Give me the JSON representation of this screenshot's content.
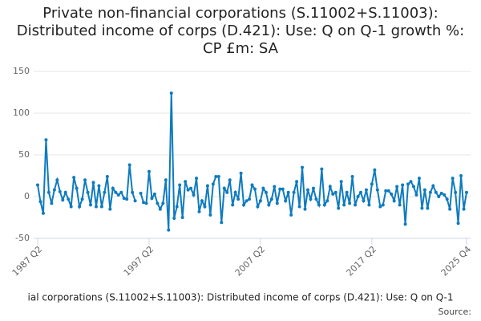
{
  "chart_data": {
    "type": "line",
    "title": "Private non-financial corporations (S.11002+S.11003): Distributed income of corps (D.421): Use: Q on Q-1 growth %: CP £m: SA",
    "categories": [
      "1987 Q2",
      null,
      null,
      null,
      null,
      null,
      null,
      null,
      null,
      null,
      null,
      null,
      null,
      null,
      null,
      null,
      null,
      null,
      null,
      null,
      null,
      null,
      null,
      null,
      null,
      null,
      null,
      null,
      null,
      null,
      null,
      null,
      null,
      null,
      null,
      null,
      null,
      null,
      null,
      null,
      "1997 Q2",
      null,
      null,
      null,
      null,
      null,
      null,
      null,
      null,
      null,
      null,
      null,
      null,
      null,
      null,
      null,
      null,
      null,
      null,
      null,
      null,
      null,
      null,
      null,
      null,
      null,
      null,
      null,
      null,
      null,
      null,
      null,
      null,
      null,
      null,
      null,
      null,
      null,
      null,
      null,
      "2007 Q2",
      null,
      null,
      null,
      null,
      null,
      null,
      null,
      null,
      null,
      null,
      null,
      null,
      null,
      null,
      null,
      null,
      null,
      null,
      null,
      null,
      null,
      null,
      null,
      null,
      null,
      null,
      null,
      null,
      null,
      null,
      null,
      null,
      null,
      null,
      null,
      null,
      null,
      null,
      null,
      "2017 Q2",
      null,
      null,
      null,
      null,
      null,
      null,
      null,
      null,
      null,
      null,
      null,
      null,
      null,
      null,
      null,
      null,
      null,
      null,
      null,
      null,
      null,
      null,
      null,
      null,
      null,
      null,
      null,
      null,
      null,
      null,
      null,
      null,
      null,
      "2025 Q4"
    ],
    "series": [
      {
        "name": "ial corporations (S.11002+S.11003): Distributed income of corps (D.421): Use: Q on Q-1",
        "color": "#0f7bbf",
        "values": [
          14,
          -6,
          -20,
          68,
          5,
          -8,
          8,
          20,
          6,
          -4,
          5,
          -3,
          -12,
          23,
          10,
          -12,
          -3,
          20,
          5,
          -10,
          17,
          -12,
          13,
          -12,
          5,
          24,
          -15,
          10,
          5,
          2,
          5,
          -2,
          -3,
          38,
          5,
          -5,
          null,
          4,
          -7,
          -8,
          30,
          -2,
          3,
          -8,
          -15,
          -8,
          20,
          -40,
          124,
          -26,
          -12,
          14,
          -25,
          18,
          8,
          10,
          2,
          22,
          -18,
          -5,
          -12,
          13,
          -22,
          15,
          24,
          24,
          -31,
          10,
          5,
          20,
          -10,
          5,
          -3,
          28,
          -10,
          -5,
          -3,
          14,
          9,
          -12,
          -5,
          10,
          5,
          -10,
          -3,
          12,
          -8,
          9,
          9,
          -5,
          5,
          -22,
          5,
          18,
          -12,
          35,
          -15,
          8,
          -3,
          10,
          -3,
          -10,
          33,
          -10,
          -5,
          12,
          3,
          5,
          -14,
          18,
          -10,
          5,
          -8,
          24,
          -10,
          0,
          5,
          -5,
          8,
          -10,
          15,
          32,
          8,
          -12,
          -10,
          7,
          7,
          3,
          -5,
          12,
          -10,
          14,
          -33,
          15,
          18,
          12,
          2,
          22,
          -14,
          8,
          -14,
          5,
          13,
          5,
          0,
          4,
          2,
          -3,
          -15,
          22,
          5,
          -32,
          25,
          -15,
          5
        ]
      }
    ],
    "source": "Source:",
    "ylim": [
      -50,
      150
    ],
    "yticks": [
      -50,
      0,
      50,
      100,
      150
    ],
    "grid": true
  }
}
